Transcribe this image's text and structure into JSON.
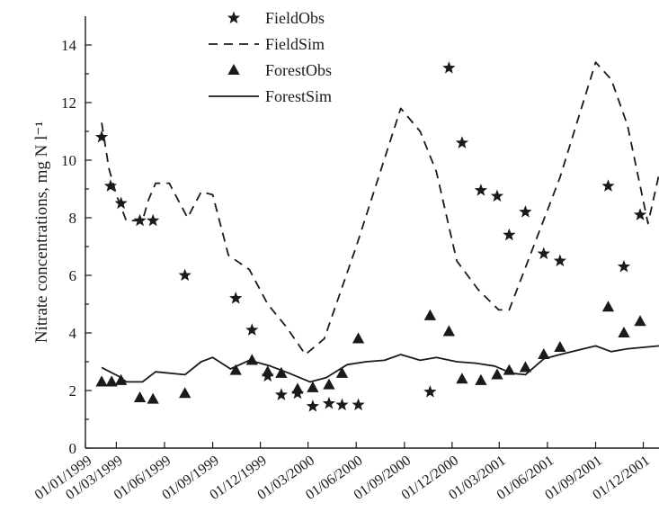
{
  "chart_data": {
    "type": "line",
    "ylabel": "Nitrate concentrations, mg N l⁻¹",
    "xlabel": "",
    "ylim": [
      0,
      15
    ],
    "y_ticks": [
      0,
      2,
      4,
      6,
      8,
      10,
      12,
      14
    ],
    "x_range": [
      "1999-01-01",
      "2001-12-31"
    ],
    "x_ticks": [
      {
        "date": "1999-01-01",
        "label": "01/01/1999"
      },
      {
        "date": "1999-03-01",
        "label": "01/03/1999"
      },
      {
        "date": "1999-06-01",
        "label": "01/06/1999"
      },
      {
        "date": "1999-09-01",
        "label": "01/09/1999"
      },
      {
        "date": "1999-12-01",
        "label": "01/12/1999"
      },
      {
        "date": "2000-03-01",
        "label": "01/03/2000"
      },
      {
        "date": "2000-06-01",
        "label": "01/06/2000"
      },
      {
        "date": "2000-09-01",
        "label": "01/09/2000"
      },
      {
        "date": "2000-12-01",
        "label": "01/12/2000"
      },
      {
        "date": "2001-03-01",
        "label": "01/03/2001"
      },
      {
        "date": "2001-06-01",
        "label": "01/06/2001"
      },
      {
        "date": "2001-09-01",
        "label": "01/09/2001"
      },
      {
        "date": "2001-12-01",
        "label": "01/12/2001"
      }
    ],
    "grid": false,
    "legend_position": "top-left",
    "series": [
      {
        "name": "FieldObs",
        "kind": "scatter",
        "marker": "star",
        "color": "#1a1a1a",
        "points": [
          {
            "x": "1999-02-01",
            "y": 10.8
          },
          {
            "x": "1999-02-18",
            "y": 9.1
          },
          {
            "x": "1999-03-10",
            "y": 8.5
          },
          {
            "x": "1999-04-15",
            "y": 7.9
          },
          {
            "x": "1999-05-10",
            "y": 7.9
          },
          {
            "x": "1999-07-10",
            "y": 6.0
          },
          {
            "x": "1999-10-15",
            "y": 5.2
          },
          {
            "x": "1999-11-15",
            "y": 4.1
          },
          {
            "x": "1999-12-15",
            "y": 2.5
          },
          {
            "x": "2000-01-10",
            "y": 1.85
          },
          {
            "x": "2000-02-10",
            "y": 1.9
          },
          {
            "x": "2000-03-10",
            "y": 1.45
          },
          {
            "x": "2000-04-10",
            "y": 1.55
          },
          {
            "x": "2000-05-05",
            "y": 1.5
          },
          {
            "x": "2000-06-05",
            "y": 1.5
          },
          {
            "x": "2000-10-20",
            "y": 1.95
          },
          {
            "x": "2000-11-25",
            "y": 13.2
          },
          {
            "x": "2000-12-20",
            "y": 10.6
          },
          {
            "x": "2001-01-25",
            "y": 8.95
          },
          {
            "x": "2001-02-25",
            "y": 8.75
          },
          {
            "x": "2001-03-20",
            "y": 7.4
          },
          {
            "x": "2001-04-20",
            "y": 8.2
          },
          {
            "x": "2001-05-25",
            "y": 6.75
          },
          {
            "x": "2001-06-25",
            "y": 6.5
          },
          {
            "x": "2001-09-25",
            "y": 9.1
          },
          {
            "x": "2001-10-25",
            "y": 6.3
          },
          {
            "x": "2001-11-25",
            "y": 8.1
          }
        ]
      },
      {
        "name": "FieldSim",
        "kind": "line",
        "dash": "10,7",
        "color": "#1a1a1a",
        "points": [
          {
            "x": "1999-02-01",
            "y": 11.3
          },
          {
            "x": "1999-02-15",
            "y": 9.7
          },
          {
            "x": "1999-03-01",
            "y": 8.8
          },
          {
            "x": "1999-03-20",
            "y": 7.9
          },
          {
            "x": "1999-04-20",
            "y": 7.9
          },
          {
            "x": "1999-05-01",
            "y": 8.6
          },
          {
            "x": "1999-05-15",
            "y": 9.2
          },
          {
            "x": "1999-06-10",
            "y": 9.2
          },
          {
            "x": "1999-07-15",
            "y": 8.0
          },
          {
            "x": "1999-08-10",
            "y": 8.9
          },
          {
            "x": "1999-09-01",
            "y": 8.8
          },
          {
            "x": "1999-10-01",
            "y": 6.7
          },
          {
            "x": "1999-11-10",
            "y": 6.2
          },
          {
            "x": "1999-12-15",
            "y": 5.0
          },
          {
            "x": "2000-01-20",
            "y": 4.2
          },
          {
            "x": "2000-02-25",
            "y": 3.25
          },
          {
            "x": "2000-04-01",
            "y": 3.8
          },
          {
            "x": "2000-06-01",
            "y": 7.0
          },
          {
            "x": "2000-08-25",
            "y": 11.8
          },
          {
            "x": "2000-10-01",
            "y": 11.0
          },
          {
            "x": "2000-11-01",
            "y": 9.6
          },
          {
            "x": "2000-12-10",
            "y": 6.5
          },
          {
            "x": "2001-01-20",
            "y": 5.5
          },
          {
            "x": "2001-02-28",
            "y": 4.8
          },
          {
            "x": "2001-03-20",
            "y": 4.8
          },
          {
            "x": "2001-06-25",
            "y": 9.4
          },
          {
            "x": "2001-09-01",
            "y": 13.4
          },
          {
            "x": "2001-10-01",
            "y": 12.8
          },
          {
            "x": "2001-11-01",
            "y": 11.2
          },
          {
            "x": "2001-12-10",
            "y": 7.8
          },
          {
            "x": "2001-12-31",
            "y": 9.5
          }
        ]
      },
      {
        "name": "ForestObs",
        "kind": "scatter",
        "marker": "triangle",
        "color": "#1a1a1a",
        "points": [
          {
            "x": "1999-02-01",
            "y": 2.3
          },
          {
            "x": "1999-02-20",
            "y": 2.3
          },
          {
            "x": "1999-03-10",
            "y": 2.35
          },
          {
            "x": "1999-04-15",
            "y": 1.75
          },
          {
            "x": "1999-05-10",
            "y": 1.7
          },
          {
            "x": "1999-07-10",
            "y": 1.9
          },
          {
            "x": "1999-10-15",
            "y": 2.7
          },
          {
            "x": "1999-11-15",
            "y": 3.05
          },
          {
            "x": "1999-12-15",
            "y": 2.65
          },
          {
            "x": "2000-01-10",
            "y": 2.6
          },
          {
            "x": "2000-02-10",
            "y": 2.05
          },
          {
            "x": "2000-03-10",
            "y": 2.1
          },
          {
            "x": "2000-04-10",
            "y": 2.2
          },
          {
            "x": "2000-05-05",
            "y": 2.6
          },
          {
            "x": "2000-06-05",
            "y": 3.8
          },
          {
            "x": "2000-10-20",
            "y": 4.6
          },
          {
            "x": "2000-11-25",
            "y": 4.05
          },
          {
            "x": "2000-12-20",
            "y": 2.4
          },
          {
            "x": "2001-01-25",
            "y": 2.35
          },
          {
            "x": "2001-02-25",
            "y": 2.55
          },
          {
            "x": "2001-03-20",
            "y": 2.7
          },
          {
            "x": "2001-04-20",
            "y": 2.8
          },
          {
            "x": "2001-05-25",
            "y": 3.25
          },
          {
            "x": "2001-06-25",
            "y": 3.5
          },
          {
            "x": "2001-09-25",
            "y": 4.9
          },
          {
            "x": "2001-10-25",
            "y": 4.0
          },
          {
            "x": "2001-11-25",
            "y": 4.4
          }
        ]
      },
      {
        "name": "ForestSim",
        "kind": "line",
        "dash": "",
        "color": "#1a1a1a",
        "points": [
          {
            "x": "1999-02-01",
            "y": 2.8
          },
          {
            "x": "1999-03-05",
            "y": 2.5
          },
          {
            "x": "1999-03-20",
            "y": 2.3
          },
          {
            "x": "1999-04-20",
            "y": 2.3
          },
          {
            "x": "1999-05-15",
            "y": 2.65
          },
          {
            "x": "1999-07-10",
            "y": 2.55
          },
          {
            "x": "1999-08-10",
            "y": 3.0
          },
          {
            "x": "1999-09-01",
            "y": 3.15
          },
          {
            "x": "1999-10-05",
            "y": 2.75
          },
          {
            "x": "1999-11-10",
            "y": 3.05
          },
          {
            "x": "1999-12-20",
            "y": 2.85
          },
          {
            "x": "2000-01-25",
            "y": 2.6
          },
          {
            "x": "2000-03-05",
            "y": 2.3
          },
          {
            "x": "2000-04-05",
            "y": 2.45
          },
          {
            "x": "2000-05-15",
            "y": 2.9
          },
          {
            "x": "2000-06-20",
            "y": 3.0
          },
          {
            "x": "2000-07-25",
            "y": 3.05
          },
          {
            "x": "2000-08-25",
            "y": 3.25
          },
          {
            "x": "2000-10-01",
            "y": 3.05
          },
          {
            "x": "2000-11-01",
            "y": 3.15
          },
          {
            "x": "2000-12-10",
            "y": 3.0
          },
          {
            "x": "2001-01-15",
            "y": 2.95
          },
          {
            "x": "2001-02-20",
            "y": 2.85
          },
          {
            "x": "2001-03-25",
            "y": 2.6
          },
          {
            "x": "2001-04-20",
            "y": 2.55
          },
          {
            "x": "2001-05-25",
            "y": 3.1
          },
          {
            "x": "2001-06-25",
            "y": 3.25
          },
          {
            "x": "2001-09-01",
            "y": 3.55
          },
          {
            "x": "2001-10-01",
            "y": 3.35
          },
          {
            "x": "2001-11-01",
            "y": 3.45
          },
          {
            "x": "2001-12-01",
            "y": 3.5
          },
          {
            "x": "2001-12-31",
            "y": 3.55
          }
        ]
      }
    ]
  }
}
